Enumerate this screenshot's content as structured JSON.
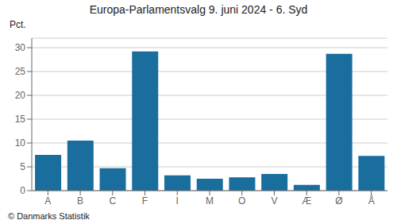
{
  "chart_data": {
    "type": "bar",
    "title": "Europa-Parlamentsvalg 9. juni 2024 - 6. Syd",
    "ylabel": "Pct.",
    "footer": "© Danmarks Statistik",
    "categories": [
      "A",
      "B",
      "C",
      "F",
      "I",
      "M",
      "O",
      "V",
      "Æ",
      "Ø",
      "Å"
    ],
    "values": [
      7.5,
      10.5,
      4.7,
      29.2,
      3.2,
      2.5,
      2.8,
      3.5,
      1.2,
      28.7,
      7.3
    ],
    "color": "#1a6e9e",
    "ylim": [
      0,
      32
    ],
    "yticks": [
      0,
      5,
      10,
      15,
      20,
      25,
      30
    ],
    "grid": true
  }
}
